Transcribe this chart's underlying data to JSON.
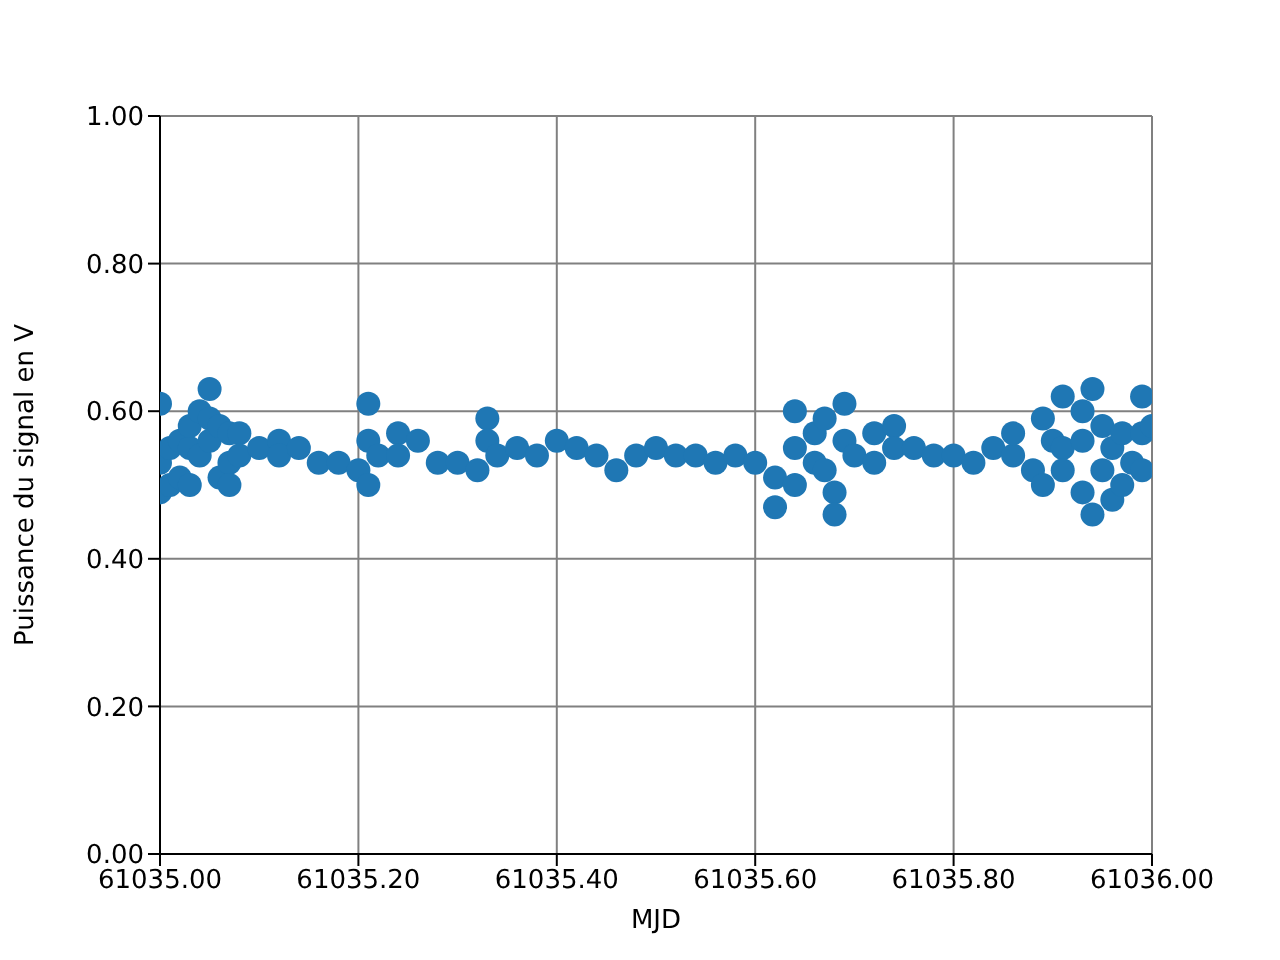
{
  "chart_data": {
    "type": "scatter",
    "xlabel": "MJD",
    "ylabel": "Puissance du signal en V",
    "x": [
      61035.0,
      61035.0,
      61035.0,
      61035.01,
      61035.01,
      61035.02,
      61035.02,
      61035.03,
      61035.03,
      61035.03,
      61035.04,
      61035.04,
      61035.05,
      61035.05,
      61035.05,
      61035.06,
      61035.06,
      61035.07,
      61035.07,
      61035.07,
      61035.08,
      61035.08,
      61035.1,
      61035.12,
      61035.12,
      61035.14,
      61035.16,
      61035.18,
      61035.2,
      61035.21,
      61035.21,
      61035.21,
      61035.22,
      61035.24,
      61035.24,
      61035.26,
      61035.28,
      61035.3,
      61035.32,
      61035.33,
      61035.33,
      61035.34,
      61035.36,
      61035.38,
      61035.4,
      61035.42,
      61035.44,
      61035.46,
      61035.48,
      61035.5,
      61035.52,
      61035.54,
      61035.56,
      61035.58,
      61035.6,
      61035.62,
      61035.62,
      61035.64,
      61035.64,
      61035.64,
      61035.66,
      61035.66,
      61035.67,
      61035.67,
      61035.68,
      61035.68,
      61035.69,
      61035.69,
      61035.7,
      61035.72,
      61035.72,
      61035.74,
      61035.74,
      61035.76,
      61035.78,
      61035.8,
      61035.82,
      61035.84,
      61035.86,
      61035.86,
      61035.88,
      61035.89,
      61035.89,
      61035.9,
      61035.91,
      61035.91,
      61035.91,
      61035.93,
      61035.93,
      61035.93,
      61035.94,
      61035.94,
      61035.95,
      61035.95,
      61035.96,
      61035.96,
      61035.97,
      61035.97,
      61035.98,
      61035.99,
      61035.99,
      61035.99,
      61036.0
    ],
    "series": [
      {
        "color": "#1f77b4",
        "values": [
          0.61,
          0.53,
          0.49,
          0.55,
          0.5,
          0.56,
          0.51,
          0.55,
          0.5,
          0.58,
          0.6,
          0.54,
          0.63,
          0.59,
          0.56,
          0.58,
          0.51,
          0.57,
          0.53,
          0.5,
          0.57,
          0.54,
          0.55,
          0.56,
          0.54,
          0.55,
          0.53,
          0.53,
          0.52,
          0.61,
          0.56,
          0.5,
          0.54,
          0.57,
          0.54,
          0.56,
          0.53,
          0.53,
          0.52,
          0.59,
          0.56,
          0.54,
          0.55,
          0.54,
          0.56,
          0.55,
          0.54,
          0.52,
          0.54,
          0.55,
          0.54,
          0.54,
          0.53,
          0.54,
          0.53,
          0.51,
          0.47,
          0.6,
          0.55,
          0.5,
          0.57,
          0.53,
          0.59,
          0.52,
          0.49,
          0.46,
          0.61,
          0.56,
          0.54,
          0.57,
          0.53,
          0.58,
          0.55,
          0.55,
          0.54,
          0.54,
          0.53,
          0.55,
          0.54,
          0.57,
          0.52,
          0.59,
          0.5,
          0.56,
          0.62,
          0.55,
          0.52,
          0.6,
          0.56,
          0.49,
          0.46,
          0.63,
          0.58,
          0.52,
          0.55,
          0.48,
          0.57,
          0.5,
          0.53,
          0.62,
          0.57,
          0.52,
          0.58
        ]
      }
    ],
    "xlim": [
      61035.0,
      61036.0
    ],
    "xticks": [
      {
        "value": 61035.0,
        "label": "61035.00"
      },
      {
        "value": 61035.2,
        "label": "61035.20"
      },
      {
        "value": 61035.4,
        "label": "61035.40"
      },
      {
        "value": 61035.6,
        "label": "61035.60"
      },
      {
        "value": 61035.8,
        "label": "61035.80"
      },
      {
        "value": 61036.0,
        "label": "61036.00"
      }
    ],
    "ylim": [
      0,
      1
    ],
    "yticks": [
      {
        "value": 0,
        "label": "0.00"
      },
      {
        "value": 0.2,
        "label": "0.20"
      },
      {
        "value": 0.4,
        "label": "0.40"
      },
      {
        "value": 0.6,
        "label": "0.60"
      },
      {
        "value": 0.8,
        "label": "0.80"
      },
      {
        "value": 1,
        "label": "1.00"
      }
    ],
    "grid": true,
    "marker": "circle"
  }
}
